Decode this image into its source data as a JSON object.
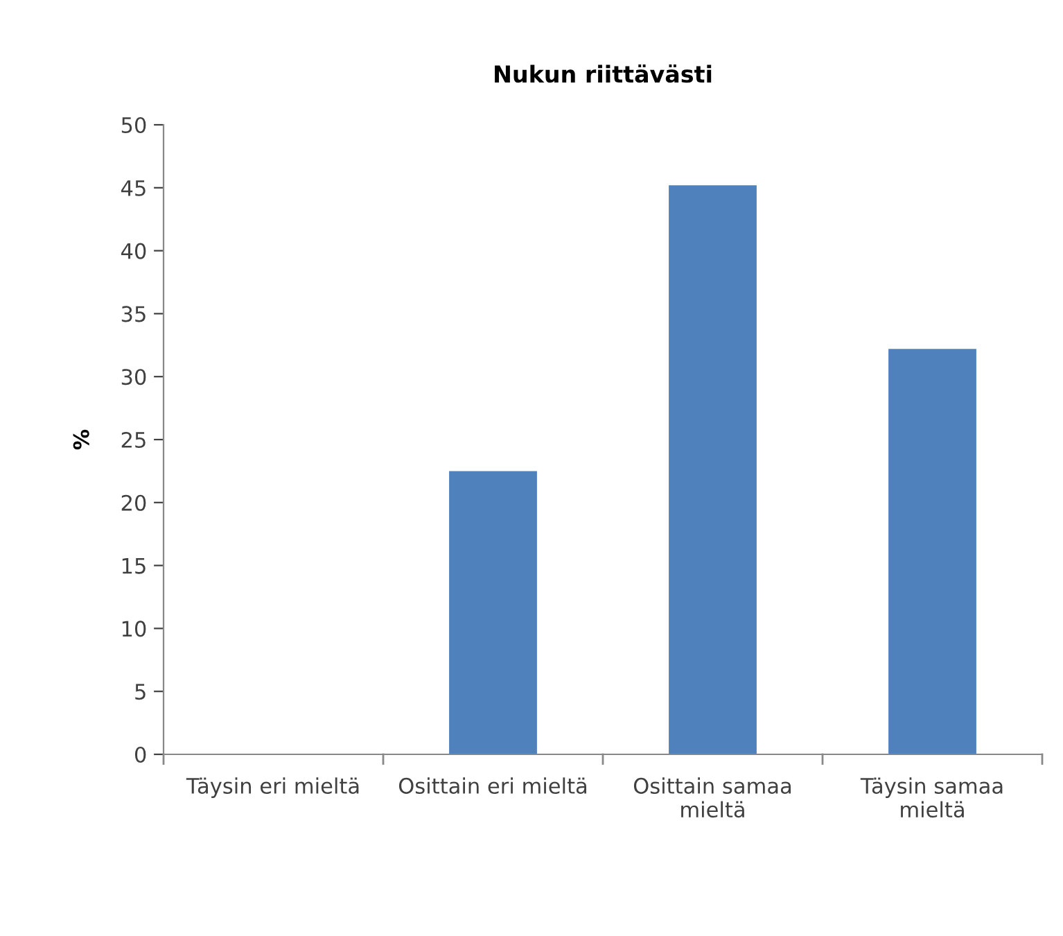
{
  "chart_data": {
    "type": "bar",
    "title": "Nukun riittävästi",
    "ylabel": "%",
    "categories": [
      "Täysin eri mieltä",
      "Osittain eri mieltä",
      "Osittain samaa\nmieltä",
      "Täysin samaa\nmieltä"
    ],
    "values": [
      0,
      22.5,
      45.2,
      32.2
    ],
    "color": "#4f81bd",
    "ylim": [
      0,
      50
    ],
    "yticks": [
      0,
      5,
      10,
      15,
      20,
      25,
      30,
      35,
      40,
      45,
      50
    ],
    "grid": false,
    "legend": false
  }
}
